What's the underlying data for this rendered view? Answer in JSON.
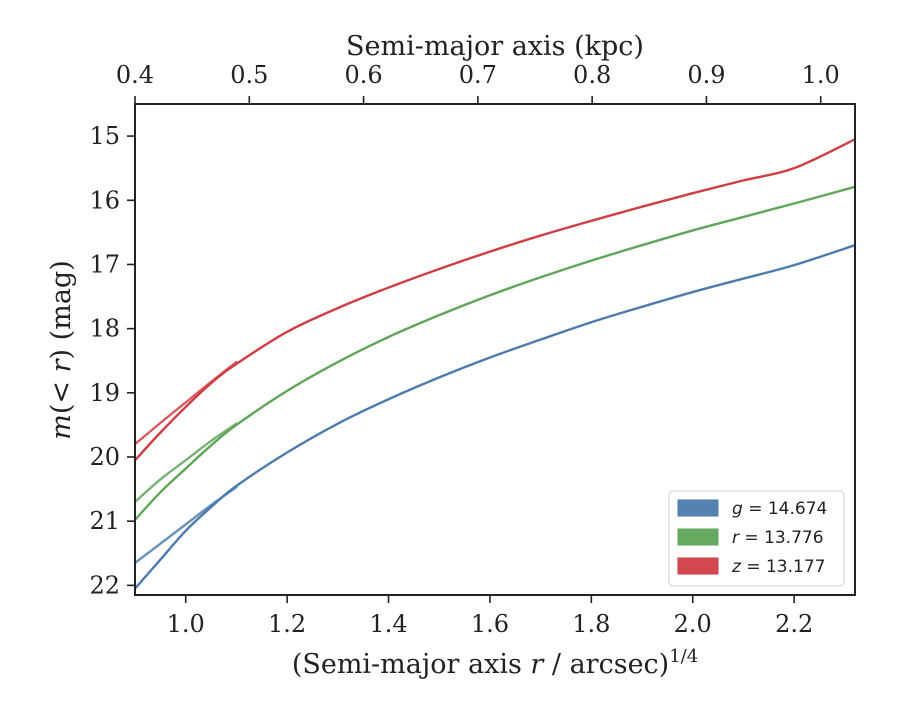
{
  "chart_data": {
    "type": "line",
    "xlabel": "(Semi-major axis r / arcsec)^1/4",
    "ylabel": "m(< r) (mag)",
    "top_xlabel": "Semi-major axis (kpc)",
    "xlim": [
      0.9,
      2.32
    ],
    "ylim": [
      22.15,
      14.5
    ],
    "y_inverted": true,
    "grid": false,
    "legend_position": "bottom-right",
    "x_ticks": [
      1.0,
      1.2,
      1.4,
      1.6,
      1.8,
      2.0,
      2.2
    ],
    "x_tick_labels": [
      "1.0",
      "1.2",
      "1.4",
      "1.6",
      "1.8",
      "2.0",
      "2.2"
    ],
    "y_ticks": [
      15,
      16,
      17,
      18,
      19,
      20,
      21,
      22
    ],
    "y_tick_labels": [
      "15",
      "16",
      "17",
      "18",
      "19",
      "20",
      "21",
      "22"
    ],
    "top_xlim_kpc": [
      0.4,
      1.03
    ],
    "top_ticks_kpc": [
      0.4,
      0.5,
      0.6,
      0.7,
      0.8,
      0.9,
      1.0
    ],
    "top_tick_labels": [
      "0.4",
      "0.5",
      "0.6",
      "0.7",
      "0.8",
      "0.9",
      "1.0"
    ],
    "series": [
      {
        "name": "g = 14.674",
        "legend_symbol": "g",
        "legend_value": "= 14.674",
        "color": "#4c7cad",
        "curves": [
          {
            "x": [
              0.9,
              0.95,
              1.0,
              1.05,
              1.1,
              1.2,
              1.3,
              1.4,
              1.5,
              1.6,
              1.7,
              1.8,
              1.9,
              2.0,
              2.1,
              2.2,
              2.32
            ],
            "y": [
              22.05,
              21.6,
              21.15,
              20.78,
              20.45,
              19.93,
              19.48,
              19.1,
              18.76,
              18.45,
              18.17,
              17.9,
              17.66,
              17.43,
              17.22,
              17.01,
              16.7
            ]
          },
          {
            "x": [
              0.9,
              0.95,
              1.0,
              1.05,
              1.1
            ],
            "y": [
              21.65,
              21.35,
              21.05,
              20.75,
              20.47
            ]
          }
        ]
      },
      {
        "name": "r = 13.776",
        "legend_symbol": "r",
        "legend_value": "= 13.776",
        "color": "#5fa55a",
        "curves": [
          {
            "x": [
              0.9,
              0.95,
              1.0,
              1.05,
              1.1,
              1.2,
              1.3,
              1.4,
              1.5,
              1.6,
              1.7,
              1.8,
              1.9,
              2.0,
              2.1,
              2.2,
              2.32
            ],
            "y": [
              20.98,
              20.55,
              20.18,
              19.82,
              19.5,
              18.97,
              18.52,
              18.13,
              17.79,
              17.48,
              17.2,
              16.94,
              16.7,
              16.47,
              16.26,
              16.05,
              15.79
            ]
          },
          {
            "x": [
              0.9,
              0.95,
              1.0,
              1.05,
              1.1
            ],
            "y": [
              20.7,
              20.35,
              20.05,
              19.75,
              19.48
            ]
          }
        ]
      },
      {
        "name": "z = 13.177",
        "legend_symbol": "z",
        "legend_value": "= 13.177",
        "color": "#cf3e44",
        "curves": [
          {
            "x": [
              0.9,
              0.95,
              1.0,
              1.05,
              1.1,
              1.2,
              1.3,
              1.4,
              1.5,
              1.6,
              1.7,
              1.8,
              1.9,
              2.0,
              2.1,
              2.2,
              2.32
            ],
            "y": [
              20.05,
              19.62,
              19.22,
              18.85,
              18.55,
              18.05,
              17.68,
              17.36,
              17.07,
              16.8,
              16.55,
              16.32,
              16.1,
              15.89,
              15.69,
              15.5,
              15.05
            ]
          },
          {
            "x": [
              0.9,
              0.95,
              1.0,
              1.05,
              1.1
            ],
            "y": [
              19.8,
              19.47,
              19.15,
              18.83,
              18.52
            ]
          }
        ]
      }
    ]
  }
}
